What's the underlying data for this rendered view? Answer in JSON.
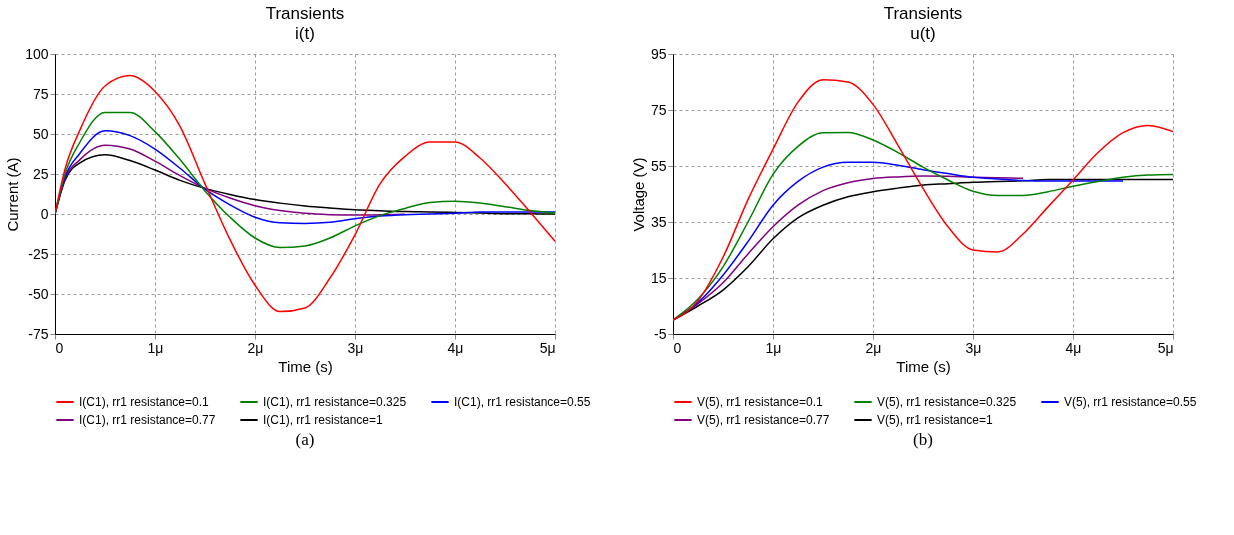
{
  "chart_data": [
    {
      "type": "line",
      "title": "Transients",
      "subtitle": "i(t)",
      "xlabel": "Time (s)",
      "ylabel": "Current (A)",
      "x": [
        0,
        0.1,
        0.25,
        0.5,
        0.75,
        1,
        1.25,
        1.5,
        1.75,
        2,
        2.25,
        2.5,
        2.75,
        3,
        3.25,
        3.5,
        3.75,
        4,
        4.25,
        4.5,
        4.75,
        5
      ],
      "series": [
        {
          "name": "I(C1), rr1 resistance=0.1",
          "color": "#ff0000",
          "values": [
            0,
            28,
            52.6,
            80,
            86.5,
            76.6,
            54.8,
            18.8,
            -16,
            -44.5,
            -61,
            -58.7,
            -40,
            -13,
            18.8,
            36,
            45,
            45,
            35,
            19,
            1.3,
            -17
          ]
        },
        {
          "name": "I(C1), rr1 resistance=0.325",
          "color": "#008000",
          "values": [
            0,
            25,
            45,
            63.5,
            63.5,
            51.5,
            34,
            14.4,
            -2,
            -15,
            -21,
            -20,
            -15,
            -7.4,
            -1,
            3.5,
            7.2,
            7.9,
            6.8,
            4.6,
            2.2,
            0.7
          ]
        },
        {
          "name": "I(C1), rr1 resistance=0.55",
          "color": "#0000ff",
          "values": [
            0,
            23,
            38,
            52,
            49,
            40.6,
            28.6,
            15.5,
            5.7,
            -2,
            -5.5,
            -5.9,
            -5.2,
            -3,
            -1.3,
            -0.4,
            0,
            0.5,
            1.2,
            1.2,
            1.2,
            1.2
          ]
        },
        {
          "name": "I(C1), rr1 resistance=0.77",
          "color": "#800080",
          "values": [
            0,
            22,
            34,
            43,
            40.6,
            33,
            24,
            16,
            10,
            5.2,
            2.2,
            0.4,
            -0.4,
            -0.7,
            -0.5,
            -0.2,
            null,
            null,
            null,
            null,
            null,
            null
          ]
        },
        {
          "name": "I(C1), rr1 resistance=1",
          "color": "#000000",
          "values": [
            0,
            21,
            32,
            37,
            33.4,
            27.5,
            21,
            16,
            12.2,
            9,
            6.8,
            5,
            3.7,
            2.6,
            2,
            1.5,
            1.3,
            1,
            0.6,
            0.2,
            0.1,
            0
          ]
        }
      ],
      "xlim": [
        0,
        5
      ],
      "ylim": [
        -75,
        100
      ],
      "xticks": [
        0,
        {
          "value": 1,
          "label": "1μ"
        },
        {
          "value": 2,
          "label": "2μ"
        },
        {
          "value": 3,
          "label": "3μ"
        },
        {
          "value": 4,
          "label": "4μ"
        },
        {
          "value": 5,
          "label": "5μ"
        }
      ],
      "yticks": [
        -75,
        -50,
        -25,
        0,
        25,
        50,
        75,
        100
      ],
      "grid": true,
      "legend": "bottom",
      "annotations": [
        "(a)"
      ]
    },
    {
      "type": "line",
      "title": "Transients",
      "subtitle": "u(t)",
      "xlabel": "Time (s)",
      "ylabel": "Voltage (V)",
      "x": [
        0,
        0.25,
        0.5,
        0.75,
        1,
        1.25,
        1.5,
        1.75,
        2,
        2.25,
        2.5,
        2.75,
        3,
        3.25,
        3.5,
        3.75,
        4,
        4.25,
        4.5,
        4.75,
        5
      ],
      "series": [
        {
          "name": "V(5), rr1 resistance=0.1",
          "color": "#ff0000",
          "values": [
            0,
            6.9,
            22.4,
            43,
            61,
            77.8,
            85.8,
            85,
            77,
            62.4,
            47,
            33.3,
            25,
            24.3,
            30.7,
            40.4,
            50,
            59.8,
            66.9,
            69.5,
            67.3
          ]
        },
        {
          "name": "V(5), rr1 resistance=0.325",
          "color": "#008000",
          "values": [
            0,
            7.5,
            19,
            35,
            52,
            62,
            66.9,
            67,
            64.3,
            59.8,
            54.6,
            50,
            46,
            44.5,
            44.5,
            45.8,
            47.8,
            49.5,
            51,
            51.8,
            52
          ]
        },
        {
          "name": "V(5), rr1 resistance=0.55",
          "color": "#0000ff",
          "values": [
            0,
            6.2,
            16,
            28,
            41,
            49.5,
            54.6,
            56.3,
            56.3,
            55.3,
            53.7,
            52.3,
            51,
            50.4,
            49.8,
            49.6,
            49.6,
            49.6,
            49.6,
            null,
            null
          ]
        },
        {
          "name": "V(5), rr1 resistance=0.77",
          "color": "#800080",
          "values": [
            0,
            5.8,
            13.3,
            23.6,
            33.3,
            41,
            46.2,
            49,
            50.5,
            51.1,
            51.4,
            51.3,
            51,
            50.8,
            50.6,
            null,
            null,
            null,
            null,
            null,
            null
          ]
        },
        {
          "name": "V(5), rr1 resistance=1",
          "color": "#000000",
          "values": [
            0,
            5,
            10.7,
            19,
            29,
            36.5,
            41,
            44,
            45.8,
            47.1,
            48.2,
            48.7,
            49.2,
            49.5,
            49.7,
            50.2,
            50.2,
            50.2,
            50.2,
            50.2,
            50.2
          ]
        }
      ],
      "xlim": [
        0,
        5
      ],
      "ylim": [
        -5,
        95
      ],
      "xticks": [
        0,
        {
          "value": 1,
          "label": "1μ"
        },
        {
          "value": 2,
          "label": "2μ"
        },
        {
          "value": 3,
          "label": "3μ"
        },
        {
          "value": 4,
          "label": "4μ"
        },
        {
          "value": 5,
          "label": "5μ"
        }
      ],
      "yticks": [
        -5,
        15,
        35,
        55,
        75,
        95
      ],
      "grid": true,
      "legend": "bottom",
      "annotations": [
        "(b)"
      ]
    }
  ]
}
